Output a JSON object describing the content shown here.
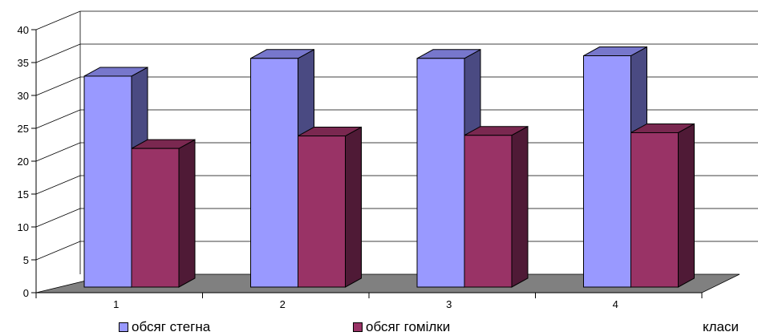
{
  "chart_data": {
    "type": "bar",
    "style": "3d-clustered-column",
    "categories": [
      "1",
      "2",
      "3",
      "4"
    ],
    "series": [
      {
        "name": "обсяг стегна",
        "values": [
          33.3,
          36.0,
          36.0,
          36.4
        ],
        "color": "#9999ff",
        "side_color": "#4a4a82",
        "top_color": "#7777cc"
      },
      {
        "name": "обсяг гомілки",
        "values": [
          22.3,
          24.2,
          24.3,
          24.7
        ],
        "color": "#993366",
        "side_color": "#4f1a36",
        "top_color": "#7a2850"
      }
    ],
    "y_ticks": [
      "0",
      "5",
      "10",
      "15",
      "20",
      "25",
      "30",
      "35",
      "40"
    ],
    "ylim": [
      0,
      40
    ],
    "ylabel": "",
    "xlabel": "класи",
    "grid": true,
    "floor_color": "#808080",
    "legend_position": "bottom"
  }
}
